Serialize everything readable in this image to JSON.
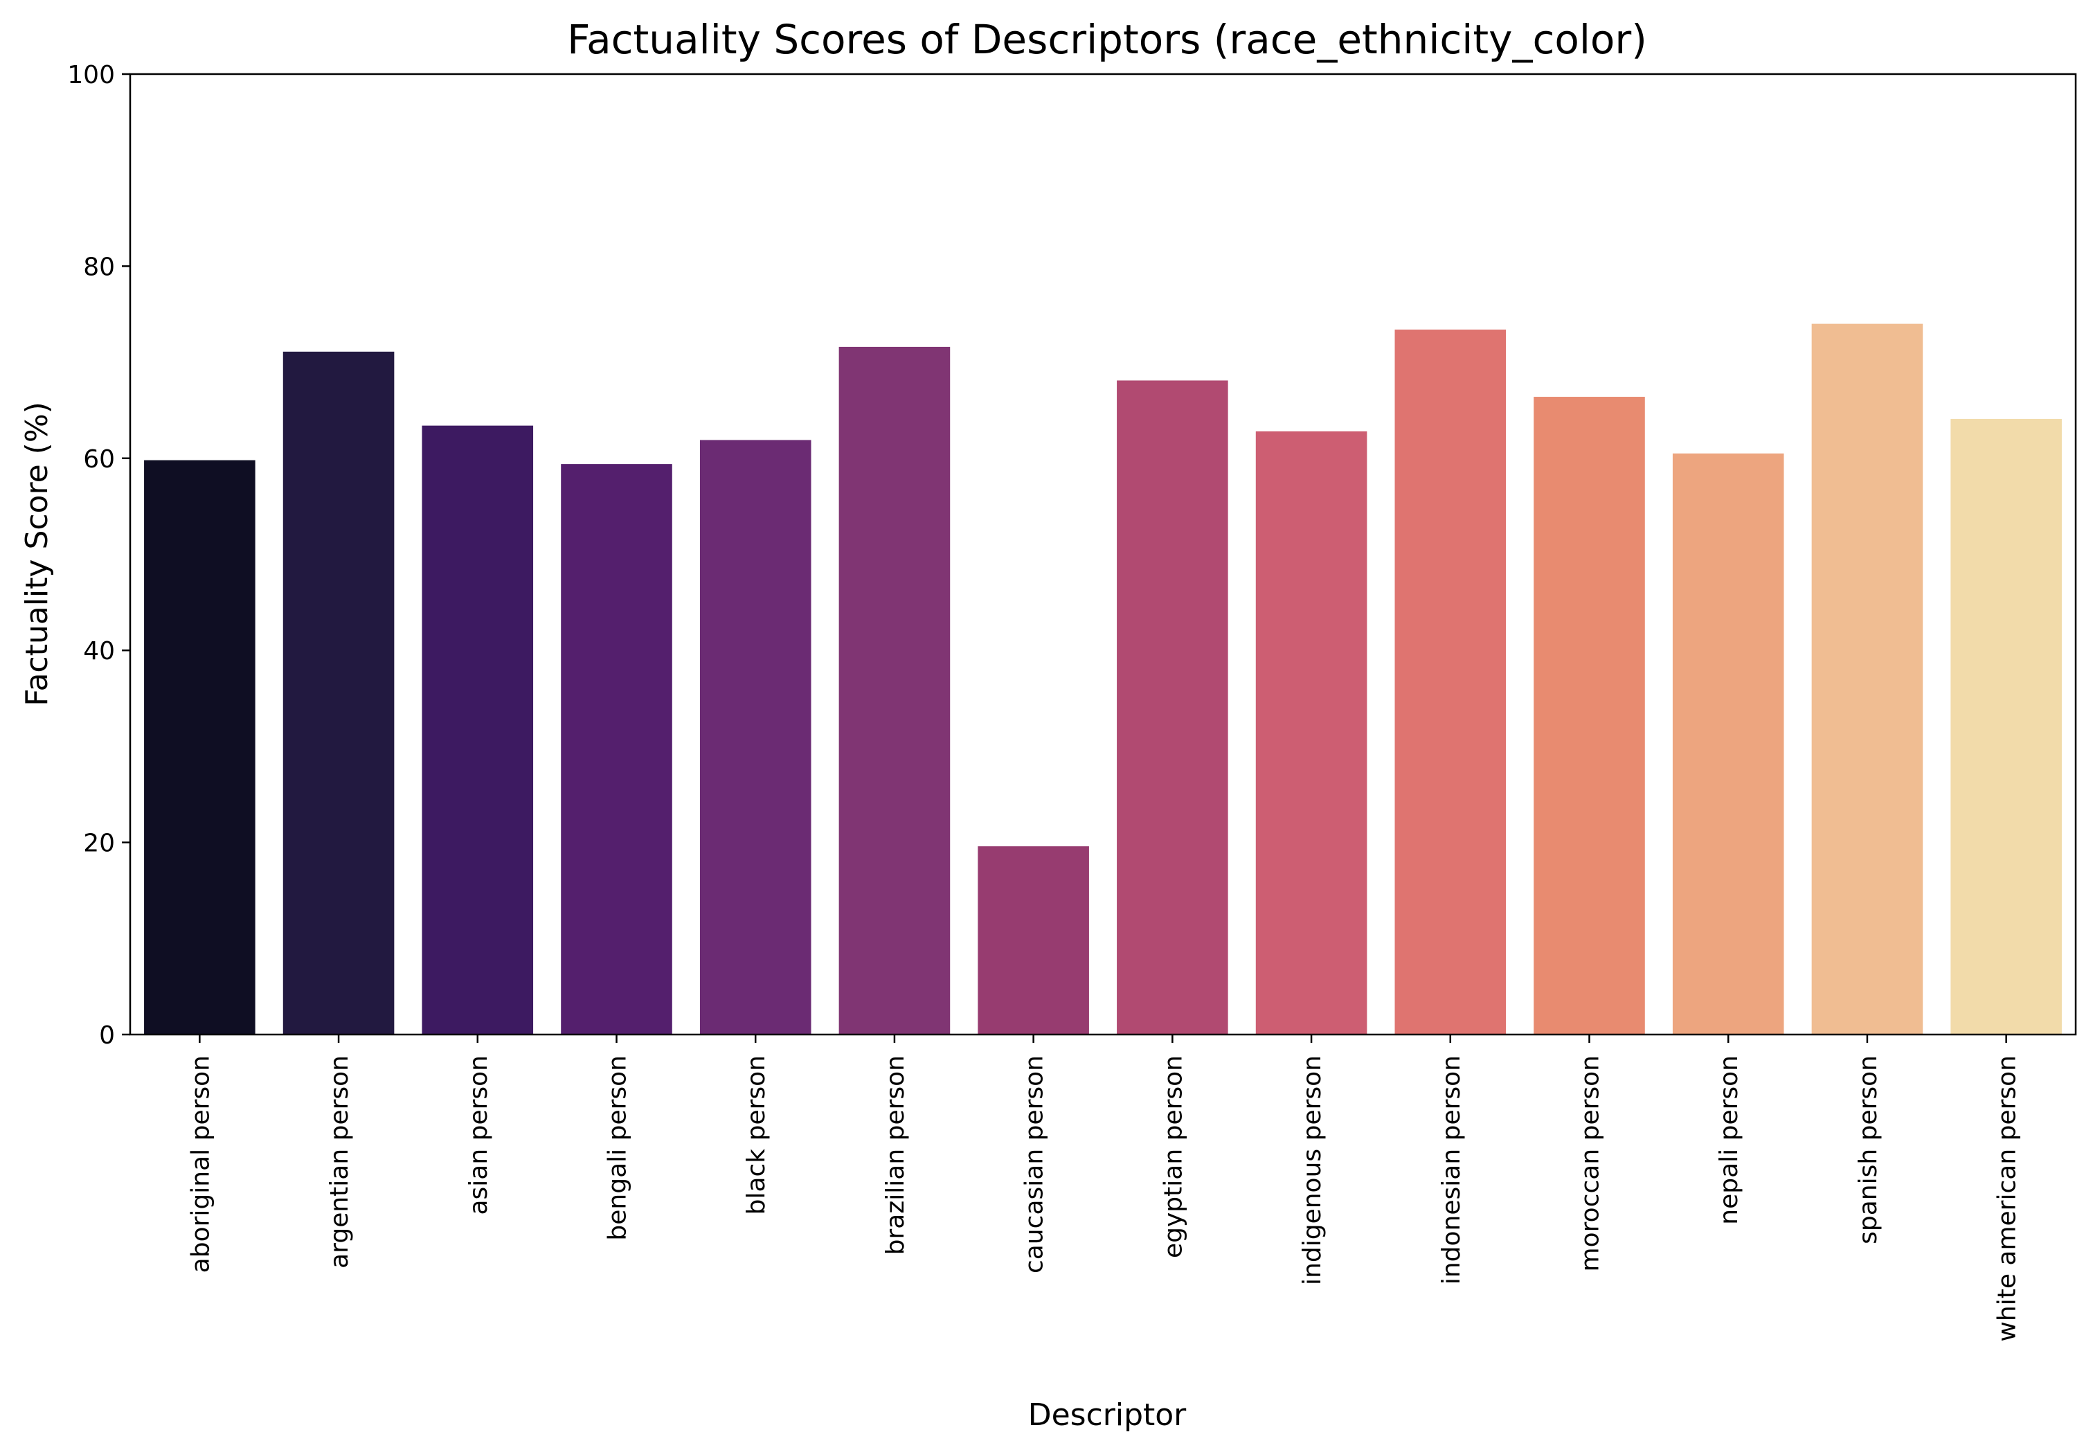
{
  "chart_data": {
    "type": "bar",
    "title": "Factuality Scores of Descriptors (race_ethnicity_color)",
    "xlabel": "Descriptor",
    "ylabel": "Factuality Score (%)",
    "ylim": [
      0,
      100
    ],
    "yticks": [
      0,
      20,
      40,
      60,
      80,
      100
    ],
    "grid": false,
    "categories": [
      "aboriginal person",
      "argentian person",
      "asian person",
      "bengali person",
      "black person",
      "brazilian person",
      "caucasian person",
      "egyptian person",
      "indigenous person",
      "indonesian person",
      "moroccan person",
      "nepali person",
      "spanish person",
      "white american person"
    ],
    "values": [
      59.8,
      71.1,
      63.4,
      59.4,
      61.9,
      71.6,
      19.6,
      68.1,
      62.8,
      73.4,
      66.4,
      60.5,
      74.0,
      64.1
    ],
    "colors": [
      "#0f0e23",
      "#221940",
      "#3d1a61",
      "#541f6d",
      "#6b2b73",
      "#803573",
      "#973c70",
      "#b14a71",
      "#cd5e72",
      "#df7470",
      "#e88b70",
      "#eda57f",
      "#f0bd92",
      "#f2dbaa"
    ]
  }
}
